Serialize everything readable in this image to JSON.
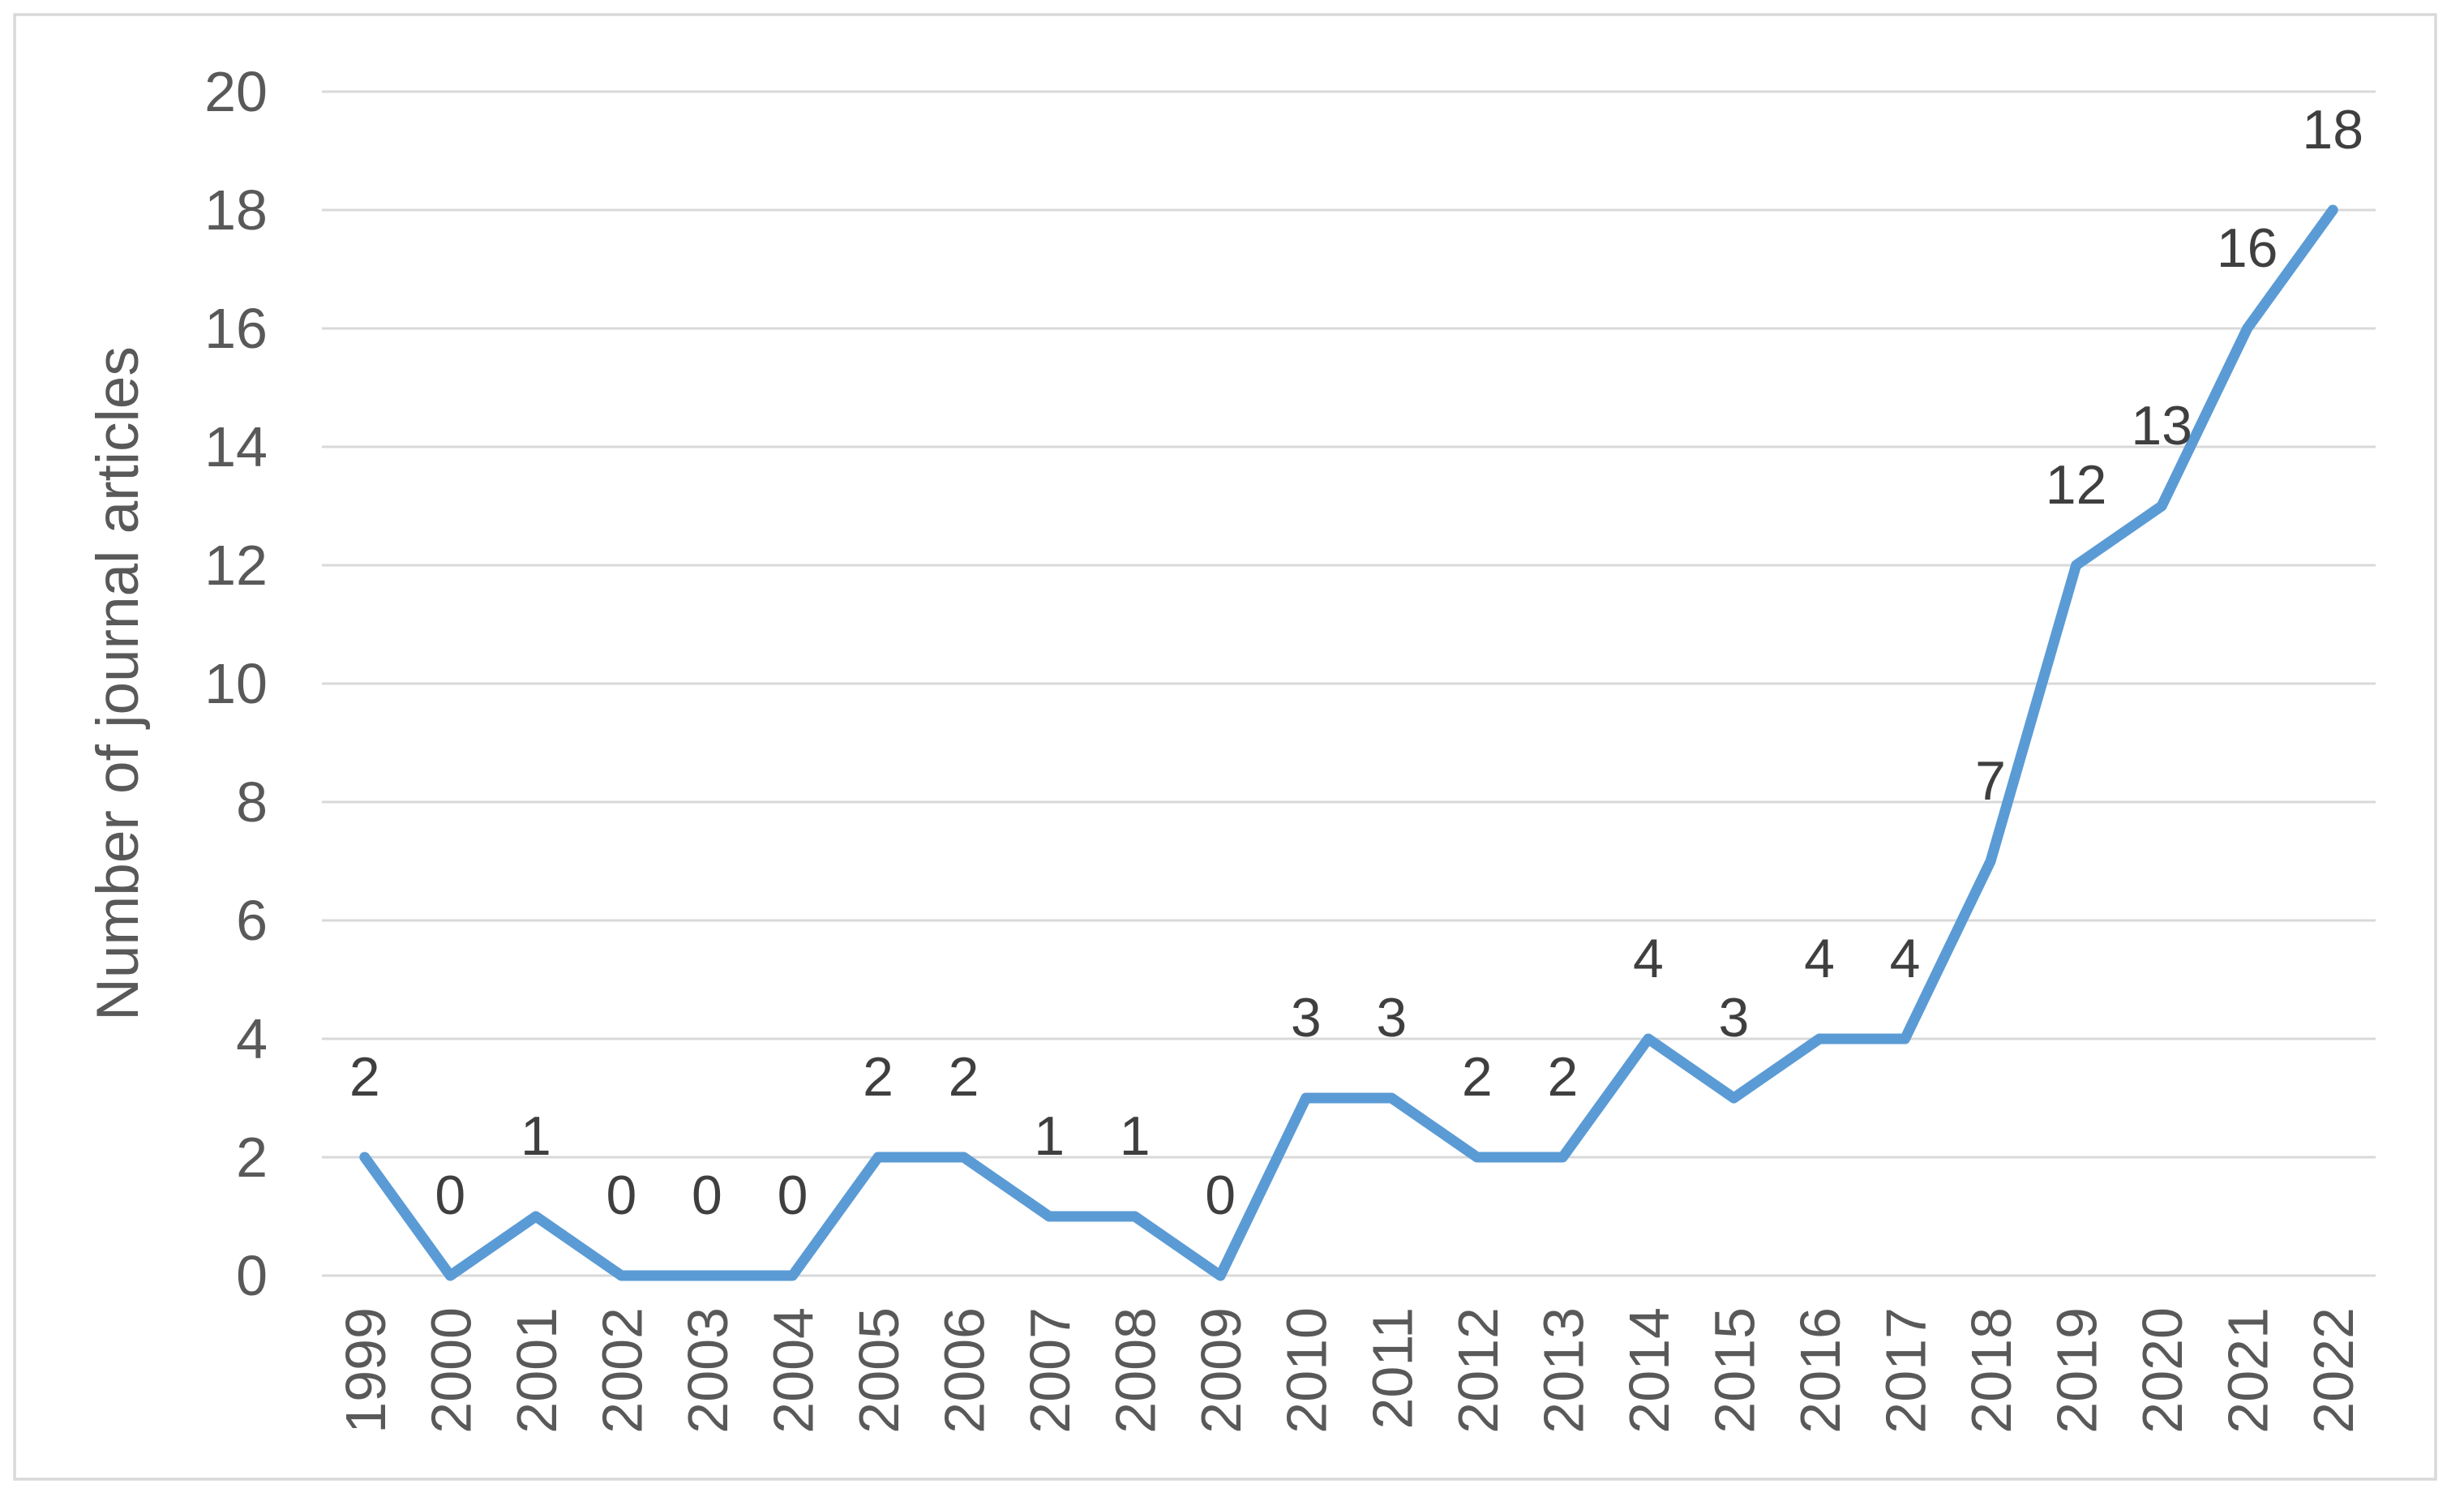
{
  "chart_data": {
    "type": "line",
    "title": "",
    "categories": [
      "1999",
      "2000",
      "2001",
      "2002",
      "2003",
      "2004",
      "2005",
      "2006",
      "2007",
      "2008",
      "2009",
      "2010",
      "2011",
      "2012",
      "2013",
      "2014",
      "2015",
      "2016",
      "2017",
      "2018",
      "2019",
      "2020",
      "2021",
      "2022"
    ],
    "values": [
      2,
      0,
      1,
      0,
      0,
      0,
      2,
      2,
      1,
      1,
      0,
      3,
      3,
      2,
      2,
      4,
      3,
      4,
      4,
      7,
      12,
      13,
      16,
      18
    ],
    "data_labels": [
      "2",
      "0",
      "1",
      "0",
      "0",
      "0",
      "2",
      "2",
      "1",
      "1",
      "0",
      "3",
      "3",
      "2",
      "2",
      "4",
      "3",
      "4",
      "4",
      "7",
      "12",
      "13",
      "16",
      "18"
    ],
    "xlabel": "",
    "ylabel": "Number of journal articles",
    "ylim": [
      0,
      20
    ],
    "ytick_step": 2,
    "ytick_labels": [
      "0",
      "2",
      "4",
      "6",
      "8",
      "10",
      "12",
      "14",
      "16",
      "18",
      "20"
    ],
    "grid": true,
    "legend": false,
    "colors": {
      "line": "#5B9BD5",
      "gridline": "#D9D9D9",
      "border": "#D9D9D9",
      "axis_text": "#595959",
      "data_label_text": "#3F3F3F",
      "background": "#FFFFFF"
    }
  }
}
